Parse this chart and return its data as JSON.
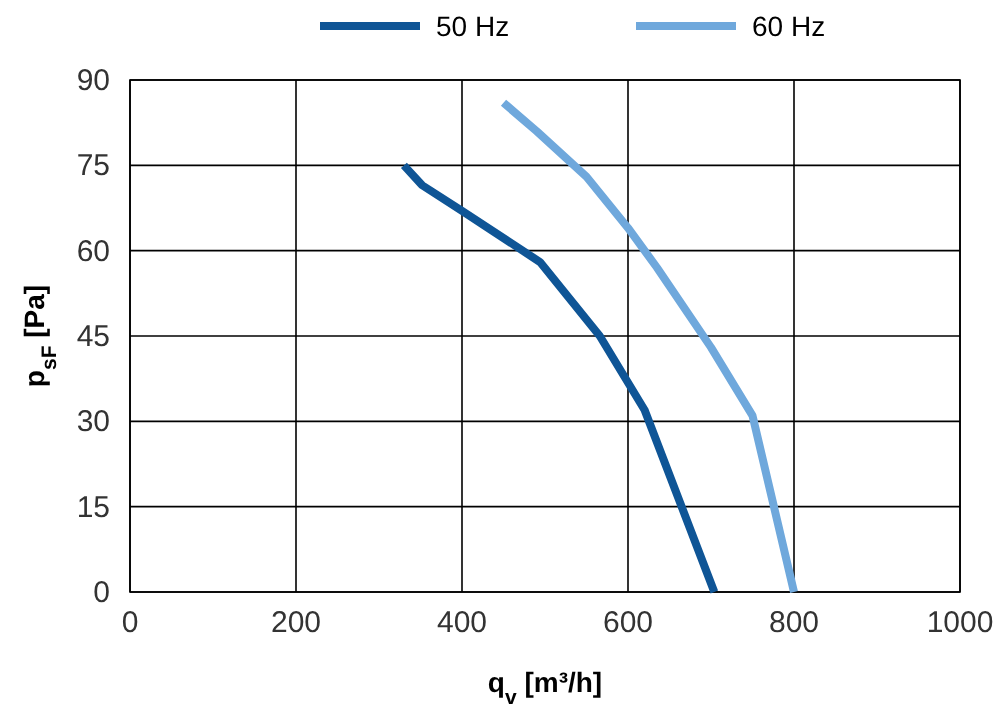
{
  "chart_data": {
    "type": "line",
    "xlabel": "q$_{v}$ [m³/h]",
    "ylabel": "p$_{sF}$ [Pa]",
    "series": [
      {
        "name": "50 Hz",
        "color": "#0f5596",
        "x": [
          330,
          352,
          400,
          494,
          566,
          620,
          704
        ],
        "values": [
          75,
          71.5,
          67,
          58,
          45,
          32,
          0
        ]
      },
      {
        "name": "60 Hz",
        "color": "#6fa8dc",
        "x": [
          450,
          490,
          550,
          600,
          635,
          700,
          750,
          800
        ],
        "values": [
          86,
          81,
          73,
          64,
          57,
          43,
          31,
          0
        ]
      }
    ],
    "xlim": [
      0,
      1000
    ],
    "xticks": [
      0,
      200,
      400,
      600,
      800,
      1000
    ],
    "ylim": [
      0,
      90
    ],
    "yticks": [
      0,
      15,
      30,
      45,
      60,
      75,
      90
    ],
    "grid": true,
    "legend": "top",
    "marker": "none",
    "line_style": "solid"
  }
}
